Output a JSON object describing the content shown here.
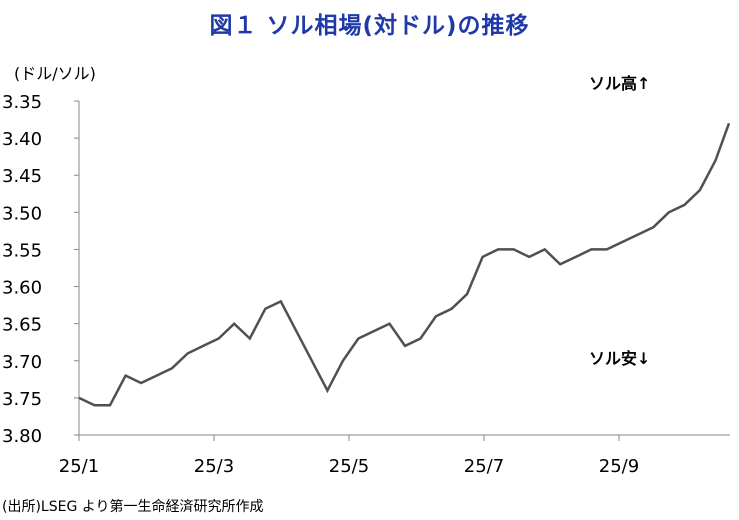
{
  "title": "図１ ソル相場(対ドル)の推移",
  "source": "(出所)LSEG より第一生命経済研究所作成",
  "chart_data": {
    "type": "line",
    "title": "図１ ソル相場(対ドル)の推移",
    "ylabel": "(ドル/ソル)",
    "xlabel": "",
    "y_inverted": true,
    "ylim": [
      3.35,
      3.8
    ],
    "yticks": [
      "3.35",
      "3.40",
      "3.45",
      "3.50",
      "3.55",
      "3.60",
      "3.65",
      "3.70",
      "3.75",
      "3.80"
    ],
    "xticks": [
      "25/1",
      "25/3",
      "25/5",
      "25/7",
      "25/9"
    ],
    "grid": false,
    "annotations": {
      "top": "ソル高↑",
      "bottom": "ソル安↓"
    },
    "series": [
      {
        "color": "#505050",
        "x": [
          "2025-01-01",
          "2025-01-08",
          "2025-01-15",
          "2025-01-22",
          "2025-01-29",
          "2025-02-05",
          "2025-02-12",
          "2025-02-19",
          "2025-02-26",
          "2025-03-05",
          "2025-03-12",
          "2025-03-19",
          "2025-03-26",
          "2025-04-02",
          "2025-04-09",
          "2025-04-16",
          "2025-04-23",
          "2025-04-30",
          "2025-05-07",
          "2025-05-14",
          "2025-05-21",
          "2025-05-28",
          "2025-06-04",
          "2025-06-11",
          "2025-06-18",
          "2025-06-25",
          "2025-07-02",
          "2025-07-09",
          "2025-07-16",
          "2025-07-23",
          "2025-07-30",
          "2025-08-06",
          "2025-08-13",
          "2025-08-20",
          "2025-08-27",
          "2025-09-03",
          "2025-09-10",
          "2025-09-17",
          "2025-09-24",
          "2025-10-01",
          "2025-10-08",
          "2025-10-15",
          "2025-10-22"
        ],
        "values": [
          3.75,
          3.76,
          3.76,
          3.72,
          3.73,
          3.72,
          3.71,
          3.69,
          3.68,
          3.67,
          3.65,
          3.67,
          3.63,
          3.62,
          3.66,
          3.7,
          3.74,
          3.7,
          3.67,
          3.66,
          3.65,
          3.68,
          3.67,
          3.64,
          3.63,
          3.61,
          3.56,
          3.55,
          3.55,
          3.56,
          3.55,
          3.57,
          3.56,
          3.55,
          3.55,
          3.54,
          3.53,
          3.52,
          3.5,
          3.49,
          3.47,
          3.43,
          3.38
        ]
      }
    ]
  }
}
